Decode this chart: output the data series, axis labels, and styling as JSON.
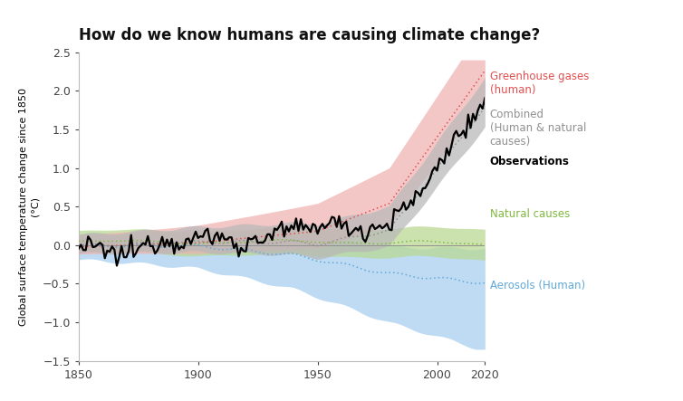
{
  "title": "How do we know humans are causing climate change?",
  "ylabel": "Global surface temperature change since 1850\n(°C)",
  "xlim": [
    1850,
    2020
  ],
  "ylim": [
    -1.5,
    2.5
  ],
  "yticks": [
    -1.5,
    -1.0,
    -0.5,
    0.0,
    0.5,
    1.0,
    1.5,
    2.0,
    2.5
  ],
  "xticks": [
    1850,
    1900,
    1950,
    2000,
    2020
  ],
  "colors": {
    "ghg": "#e05050",
    "ghg_fill": "#f0b0b0",
    "natural": "#80b840",
    "natural_fill": "#b8d890",
    "aerosols": "#60a8d8",
    "aerosols_fill": "#a8d0f0",
    "combined": "#909090",
    "combined_fill": "#b8b8b8",
    "observations": "#000000",
    "zero_line": "#909090"
  },
  "legend": {
    "ghg_label": "Greenhouse gases\n(human)",
    "combined_label": "Combined\n(Human & natural\ncauses)",
    "observations_label": "Observations",
    "natural_label": "Natural causes",
    "aerosols_label": "Aerosols (Human)"
  }
}
